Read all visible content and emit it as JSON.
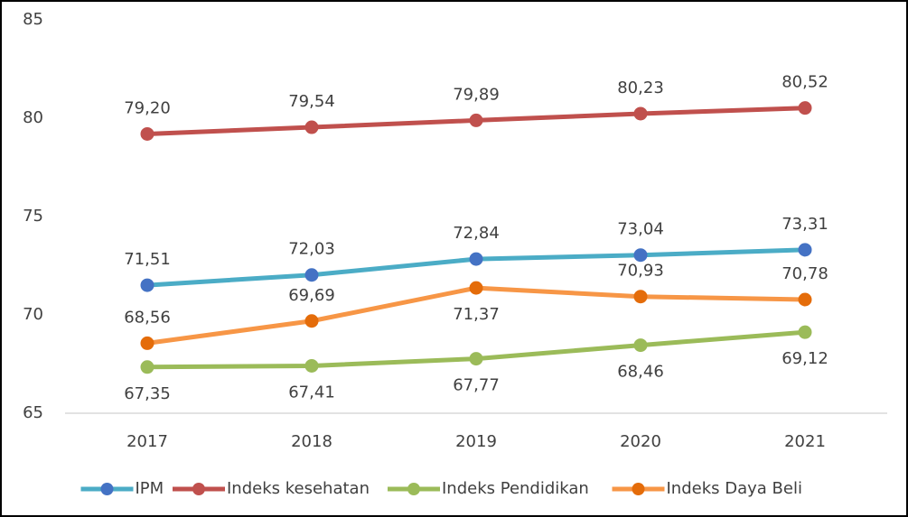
{
  "chart_data": {
    "type": "line",
    "categories": [
      "2017",
      "2018",
      "2019",
      "2020",
      "2021"
    ],
    "series": [
      {
        "name": "IPM",
        "color": "#4bacc6",
        "marker_color": "#4472c4",
        "values": [
          71.51,
          72.03,
          72.84,
          73.04,
          73.31
        ],
        "value_labels": [
          "71,51",
          "72,03",
          "72,84",
          "73,04",
          "73,31"
        ]
      },
      {
        "name": "Indeks kesehatan",
        "color": "#c0504d",
        "marker_color": "#c0504d",
        "values": [
          79.2,
          79.54,
          79.89,
          80.23,
          80.52
        ],
        "value_labels": [
          "79,20",
          "79,54",
          "79,89",
          "80,23",
          "80,52"
        ]
      },
      {
        "name": "Indeks Pendidikan",
        "color": "#9bbb59",
        "marker_color": "#9bbb59",
        "values": [
          67.35,
          67.41,
          67.77,
          68.46,
          69.12
        ],
        "value_labels": [
          "67,35",
          "67,41",
          "67,77",
          "68,46",
          "69,12"
        ]
      },
      {
        "name": "Indeks Daya Beli",
        "color": "#f79646",
        "marker_color": "#e46c0a",
        "values": [
          68.56,
          69.69,
          71.37,
          70.93,
          70.78
        ],
        "value_labels": [
          "68,56",
          "69,69",
          "71,37",
          "70,93",
          "70,78"
        ]
      }
    ],
    "ylim": [
      65,
      85
    ],
    "yticks": [
      65,
      70,
      75,
      80,
      85
    ],
    "grid": false,
    "legend": "bottom"
  }
}
